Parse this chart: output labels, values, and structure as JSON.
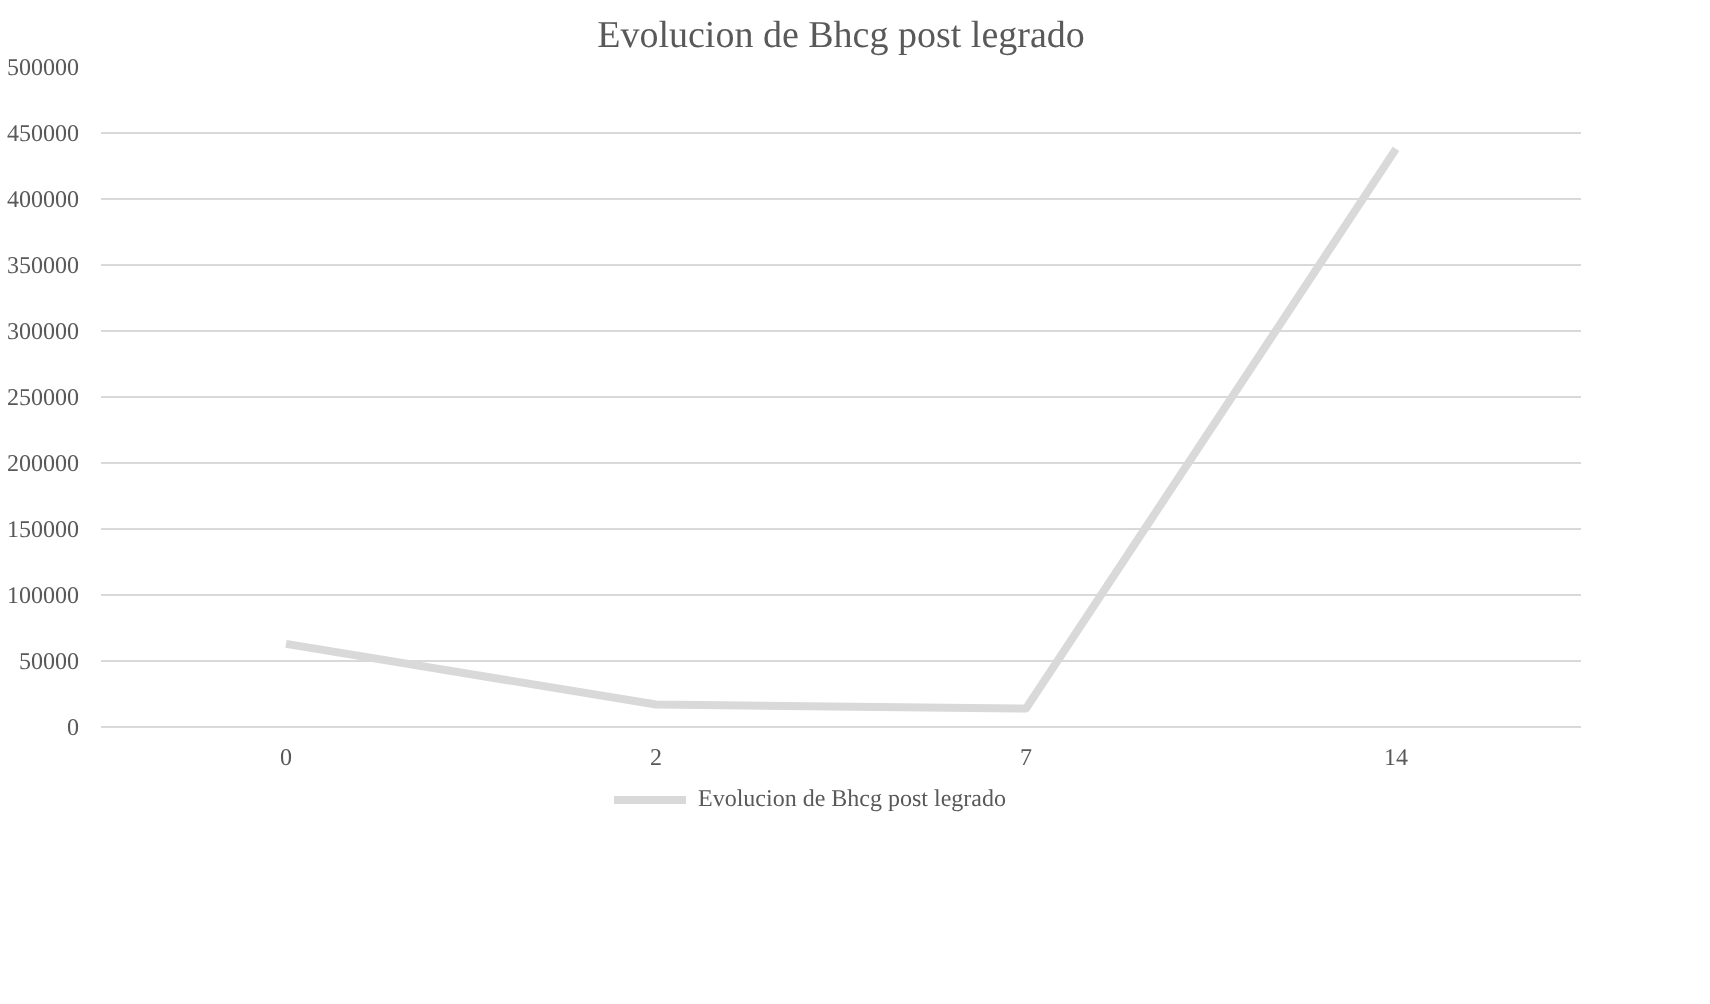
{
  "chart_data": {
    "type": "line",
    "title": "Evolucion de Bhcg post legrado",
    "categories": [
      "0",
      "2",
      "7",
      "14"
    ],
    "series": [
      {
        "name": "Evolucion de Bhcg post legrado",
        "color": "#d9d9d9",
        "values": [
          63000,
          17000,
          14000,
          438000
        ]
      }
    ],
    "ylim": [
      0,
      500000
    ],
    "yticks": [
      0,
      50000,
      100000,
      150000,
      200000,
      250000,
      300000,
      350000,
      400000,
      450000,
      500000
    ],
    "grid": "y",
    "legend": "bottom",
    "marker": "none",
    "line_style": "solid"
  }
}
